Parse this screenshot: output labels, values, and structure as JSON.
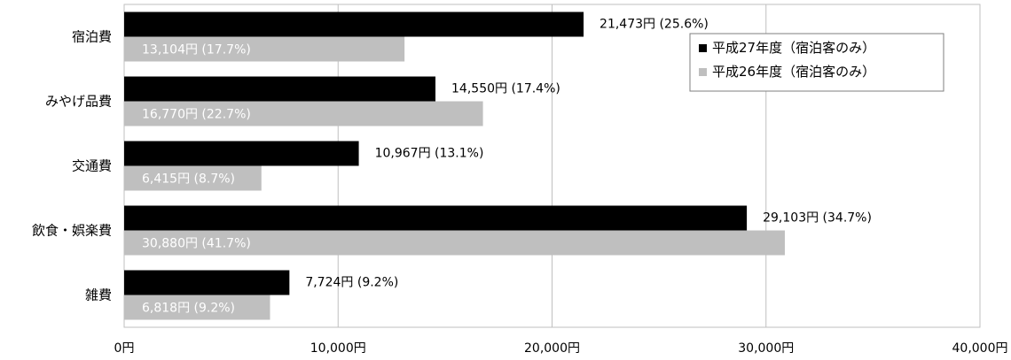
{
  "chart_data": {
    "type": "bar",
    "orientation": "horizontal",
    "categories": [
      "宿泊費",
      "みやげ品費",
      "交通費",
      "飲食・娯楽費",
      "雑費"
    ],
    "series": [
      {
        "name": "平成27年度（宿泊客のみ）",
        "color": "#000000",
        "values": [
          21473,
          14550,
          10967,
          29103,
          7724
        ],
        "labels": [
          "21,473円 (25.6%)",
          "14,550円 (17.4%)",
          "10,967円 (13.1%)",
          "29,103円 (34.7%)",
          "7,724円 (9.2%)"
        ],
        "label_color": "#000000"
      },
      {
        "name": "平成26年度（宿泊客のみ）",
        "color": "#bfbfbf",
        "values": [
          13104,
          16770,
          6415,
          30880,
          6818
        ],
        "labels": [
          "13,104円 (17.7%)",
          "16,770円 (22.7%)",
          "6,415円 (8.7%)",
          "30,880円 (41.7%)",
          "6,818円 (9.2%)"
        ],
        "label_color": "#ffffff"
      }
    ],
    "xlim": [
      0,
      40000
    ],
    "x_ticks": [
      0,
      10000,
      20000,
      30000,
      40000
    ],
    "x_tick_labels": [
      "0円",
      "10,000円",
      "20,000円",
      "30,000円",
      "40,000円"
    ],
    "grid": true,
    "legend_position": "top-right",
    "title": "",
    "xlabel": "",
    "ylabel": ""
  }
}
